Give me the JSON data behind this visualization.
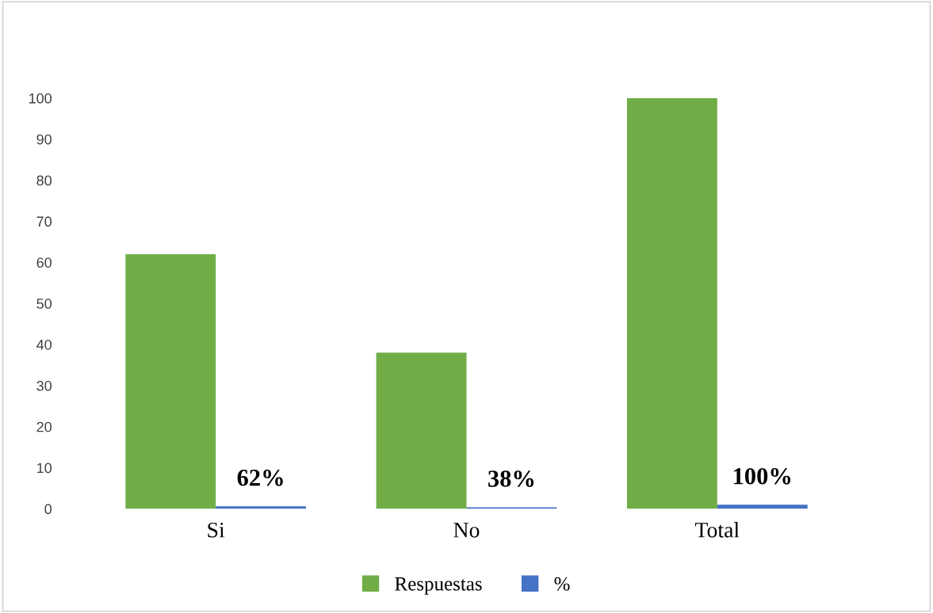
{
  "chart_data": {
    "type": "bar",
    "categories": [
      "Si",
      "No",
      "Total"
    ],
    "series": [
      {
        "name": "Respuestas",
        "color": "#70ad47",
        "values": [
          62,
          38,
          100
        ]
      },
      {
        "name": "%",
        "color": "#4472c4",
        "values": [
          0.62,
          0.38,
          1
        ],
        "value_labels": [
          "62%",
          "38%",
          "100%"
        ]
      }
    ],
    "ylim": [
      0,
      100
    ],
    "yticks": [
      0,
      10,
      20,
      30,
      40,
      50,
      60,
      70,
      80,
      90,
      100
    ],
    "grid": false,
    "legend": "bottom"
  }
}
